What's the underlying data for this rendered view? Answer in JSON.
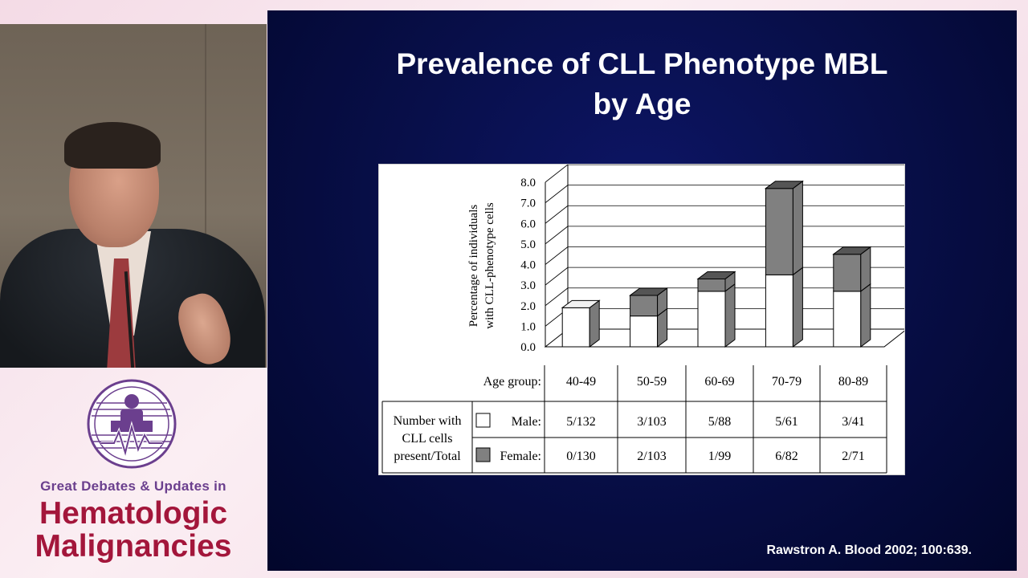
{
  "slide": {
    "title_line1": "Prevalence of CLL Phenotype MBL",
    "title_line2": "by Age",
    "citation": "Rawstron A. Blood 2002; 100:639."
  },
  "conference": {
    "line1": "Great Debates & Updates in",
    "line2": "Hematologic",
    "line3": "Malignancies"
  },
  "colors": {
    "slide_background": "#080f4a",
    "male_bar": "#ffffff",
    "female_bar": "#808080",
    "conference_purple": "#6b3f8e",
    "conference_red": "#a3163b"
  },
  "chart_data": {
    "type": "bar",
    "stacked": true,
    "three_d": true,
    "ylabel_line1": "Percentage of individuals",
    "ylabel_line2": "with CLL-phenotype cells",
    "yticks": [
      "0.0",
      "1.0",
      "2.0",
      "3.0",
      "4.0",
      "5.0",
      "6.0",
      "7.0",
      "8.0"
    ],
    "ylim": [
      0,
      8
    ],
    "grid": true,
    "categories": [
      "40-49",
      "50-59",
      "60-69",
      "70-79",
      "80-89"
    ],
    "series": [
      {
        "name": "Male",
        "values": [
          1.9,
          1.5,
          2.7,
          3.5,
          2.7
        ]
      },
      {
        "name": "Female",
        "values": [
          0.0,
          1.0,
          0.6,
          4.2,
          1.8
        ]
      }
    ],
    "table": {
      "age_group_label": "Age group:",
      "row_header": [
        "Number with",
        "CLL cells",
        "present/Total"
      ],
      "male_label": "Male:",
      "female_label": "Female:",
      "male_counts": [
        "5/132",
        "3/103",
        "5/88",
        "5/61",
        "3/41"
      ],
      "female_counts": [
        "0/130",
        "2/103",
        "1/99",
        "6/82",
        "2/71"
      ]
    }
  }
}
